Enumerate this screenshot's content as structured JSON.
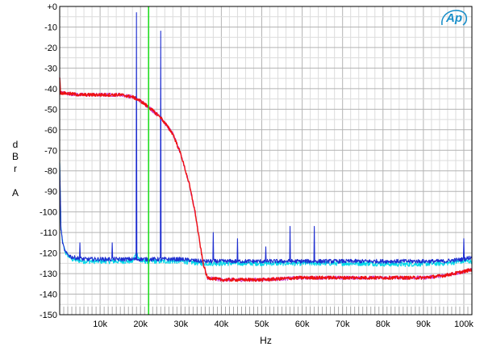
{
  "chart_data": {
    "type": "line",
    "title": "",
    "xlabel": "Hz",
    "ylabel_letters": [
      "d",
      "B",
      "r",
      "",
      "A"
    ],
    "xlim": [
      0,
      102000
    ],
    "ylim": [
      -150,
      0
    ],
    "x_ticks": [
      {
        "value": 10000,
        "label": "10k"
      },
      {
        "value": 20000,
        "label": "20k"
      },
      {
        "value": 30000,
        "label": "30k"
      },
      {
        "value": 40000,
        "label": "40k"
      },
      {
        "value": 50000,
        "label": "50k"
      },
      {
        "value": 60000,
        "label": "60k"
      },
      {
        "value": 70000,
        "label": "70k"
      },
      {
        "value": 80000,
        "label": "80k"
      },
      {
        "value": 90000,
        "label": "90k"
      },
      {
        "value": 100000,
        "label": "100k"
      }
    ],
    "y_ticks": [
      {
        "value": 0,
        "label": "+0"
      },
      {
        "value": -10,
        "label": "-10"
      },
      {
        "value": -20,
        "label": "-20"
      },
      {
        "value": -30,
        "label": "-30"
      },
      {
        "value": -40,
        "label": "-40"
      },
      {
        "value": -50,
        "label": "-50"
      },
      {
        "value": -60,
        "label": "-60"
      },
      {
        "value": -70,
        "label": "-70"
      },
      {
        "value": -80,
        "label": "-80"
      },
      {
        "value": -90,
        "label": "-90"
      },
      {
        "value": -100,
        "label": "-100"
      },
      {
        "value": -110,
        "label": "-110"
      },
      {
        "value": -120,
        "label": "-120"
      },
      {
        "value": -130,
        "label": "-130"
      },
      {
        "value": -140,
        "label": "-140"
      },
      {
        "value": -150,
        "label": "-150"
      }
    ],
    "grid": true,
    "marker_line": {
      "x": 22000,
      "color": "#22dd22"
    },
    "series": [
      {
        "color": "#00d8e8",
        "points": [
          [
            0,
            -76
          ],
          [
            300,
            -108
          ],
          [
            800,
            -116
          ],
          [
            1500,
            -120
          ],
          [
            3000,
            -123
          ],
          [
            6000,
            -124
          ],
          [
            12000,
            -124
          ],
          [
            18000,
            -124
          ],
          [
            19000,
            -120
          ],
          [
            20000,
            -124
          ],
          [
            30000,
            -124
          ],
          [
            35000,
            -125
          ],
          [
            45000,
            -125
          ],
          [
            60000,
            -125
          ],
          [
            75000,
            -125
          ],
          [
            85000,
            -125.5
          ],
          [
            95000,
            -125
          ],
          [
            100000,
            -124
          ],
          [
            102000,
            -124
          ]
        ],
        "noise": 1.2,
        "spikes": []
      },
      {
        "color": "#cc33cc",
        "points": [
          [
            0,
            -34
          ],
          [
            200,
            -42
          ],
          [
            5000,
            -43
          ],
          [
            10000,
            -43
          ],
          [
            15000,
            -43
          ],
          [
            18000,
            -44
          ],
          [
            20000,
            -46
          ],
          [
            22000,
            -49
          ],
          [
            25000,
            -54
          ],
          [
            28000,
            -62
          ],
          [
            30000,
            -72
          ],
          [
            32000,
            -86
          ],
          [
            33500,
            -100
          ],
          [
            34500,
            -113
          ],
          [
            35500,
            -125
          ],
          [
            36500,
            -132
          ],
          [
            40000,
            -133
          ],
          [
            50000,
            -133
          ],
          [
            60000,
            -132
          ],
          [
            70000,
            -132
          ],
          [
            80000,
            -132
          ],
          [
            90000,
            -132
          ],
          [
            95000,
            -131
          ],
          [
            100000,
            -129
          ],
          [
            102000,
            -128
          ]
        ],
        "noise": 0.9,
        "spikes": []
      },
      {
        "color": "#1f2fd0",
        "points": [
          [
            0,
            -76
          ],
          [
            300,
            -108
          ],
          [
            800,
            -116
          ],
          [
            1500,
            -120
          ],
          [
            3000,
            -122
          ],
          [
            6000,
            -123
          ],
          [
            12000,
            -123
          ],
          [
            18000,
            -123
          ],
          [
            20000,
            -123
          ],
          [
            25000,
            -123
          ],
          [
            30000,
            -123
          ],
          [
            35000,
            -124
          ],
          [
            45000,
            -124
          ],
          [
            60000,
            -124
          ],
          [
            75000,
            -124
          ],
          [
            85000,
            -124
          ],
          [
            95000,
            -124
          ],
          [
            100000,
            -123
          ],
          [
            102000,
            -122
          ]
        ],
        "noise": 1.0,
        "spikes": [
          [
            5000,
            -115
          ],
          [
            13000,
            -115
          ],
          [
            19000,
            -3
          ],
          [
            25000,
            -12
          ],
          [
            38000,
            -110
          ],
          [
            44000,
            -113
          ],
          [
            51000,
            -117
          ],
          [
            57000,
            -107
          ],
          [
            63000,
            -107
          ],
          [
            100000,
            -113
          ]
        ]
      },
      {
        "color": "#ee1111",
        "points": [
          [
            0,
            -34
          ],
          [
            200,
            -42
          ],
          [
            5000,
            -43
          ],
          [
            10000,
            -43
          ],
          [
            15000,
            -43
          ],
          [
            18000,
            -44
          ],
          [
            20000,
            -46
          ],
          [
            22000,
            -49
          ],
          [
            25000,
            -54
          ],
          [
            28000,
            -62
          ],
          [
            30000,
            -72
          ],
          [
            32000,
            -86
          ],
          [
            33500,
            -100
          ],
          [
            34500,
            -113
          ],
          [
            35500,
            -125
          ],
          [
            36500,
            -132
          ],
          [
            40000,
            -133
          ],
          [
            50000,
            -133
          ],
          [
            60000,
            -132
          ],
          [
            70000,
            -132
          ],
          [
            80000,
            -132
          ],
          [
            90000,
            -132
          ],
          [
            95000,
            -131
          ],
          [
            100000,
            -129
          ],
          [
            102000,
            -128
          ]
        ],
        "noise": 0.8,
        "spikes": []
      }
    ]
  },
  "logo": {
    "text": "Ap",
    "color": "#1a8fc9"
  }
}
